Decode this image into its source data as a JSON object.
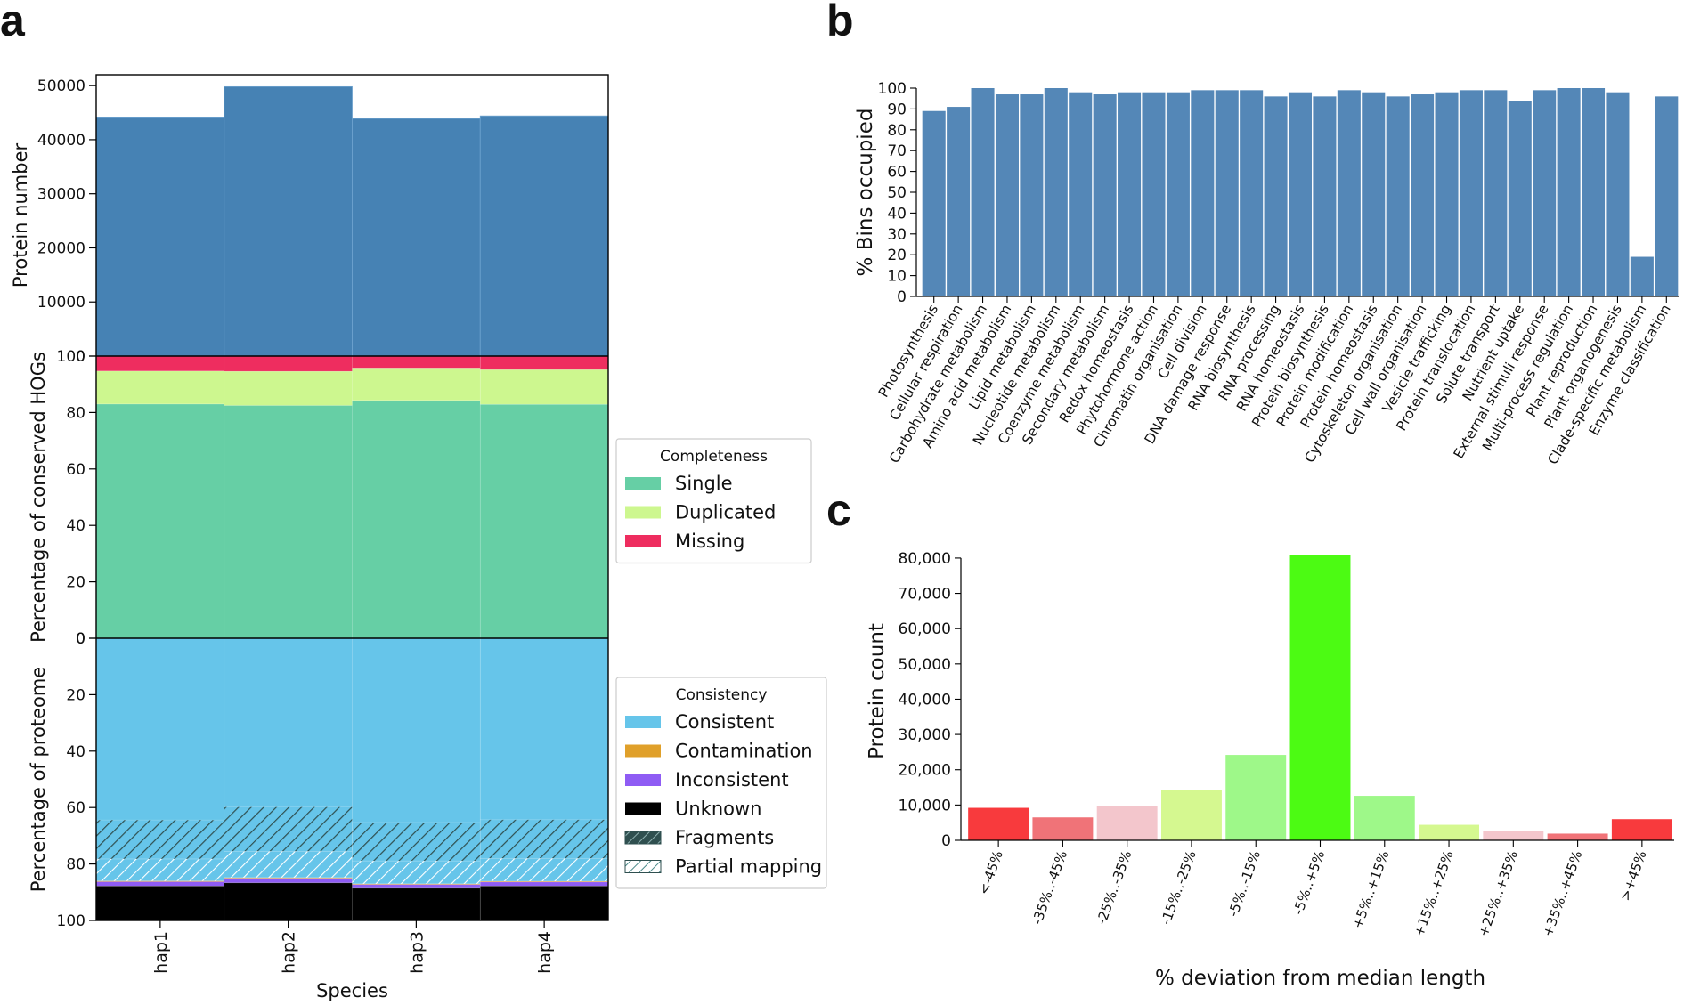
{
  "panel_labels": {
    "a": "a",
    "b": "b",
    "c": "c"
  },
  "chart_data": [
    {
      "id": "a-top",
      "type": "bar",
      "categories": [
        "hap1",
        "hap2",
        "hap3",
        "hap4"
      ],
      "values": [
        44200,
        49800,
        43900,
        44400
      ],
      "ylabel": "Protein number",
      "ylim": [
        0,
        52000
      ],
      "yticks": [
        "0",
        "10000",
        "20000",
        "30000",
        "40000",
        "50000"
      ],
      "color": "#4682b4"
    },
    {
      "id": "a-middle",
      "type": "bar",
      "stacked": true,
      "categories": [
        "hap1",
        "hap2",
        "hap3",
        "hap4"
      ],
      "ylabel": "Percentage of conserved HOGs",
      "ylim": [
        0,
        100
      ],
      "yticks": [
        "0",
        "20",
        "40",
        "60",
        "80",
        "100"
      ],
      "series": [
        {
          "name": "Single",
          "values": [
            83.0,
            82.5,
            84.3,
            82.9
          ],
          "color": "#66cfa5"
        },
        {
          "name": "Duplicated",
          "values": [
            11.7,
            12.1,
            11.5,
            12.3
          ],
          "color": "#cdf78f"
        },
        {
          "name": "Missing",
          "values": [
            5.3,
            5.4,
            4.2,
            4.8
          ],
          "color": "#ee2d5f"
        }
      ],
      "legend": {
        "title": "Completeness",
        "position": "right"
      }
    },
    {
      "id": "a-bottom",
      "type": "bar",
      "stacked": true,
      "categories": [
        "hap1",
        "hap2",
        "hap3",
        "hap4"
      ],
      "ylabel": "Percentage of proteome",
      "xlabel": "Species",
      "ylim": [
        100,
        0
      ],
      "yticks": [
        "100",
        "80",
        "60",
        "40",
        "20",
        "0"
      ],
      "series": [
        {
          "name": "Consistent",
          "values": [
            86.0,
            84.8,
            87.0,
            86.1
          ],
          "color": "#66c5ea"
        },
        {
          "name": "Contamination",
          "values": [
            0.3,
            0.3,
            0.3,
            0.3
          ],
          "color": "#e0a02a"
        },
        {
          "name": "Inconsistent",
          "values": [
            1.5,
            1.6,
            1.3,
            1.4
          ],
          "color": "#8f5cf4"
        },
        {
          "name": "Unknown",
          "values": [
            12.2,
            13.3,
            11.4,
            12.2
          ],
          "color": "#000000"
        }
      ],
      "overlays": [
        {
          "name": "Partial mapping",
          "start": [
            78.2,
            75.5,
            78.9,
            78.0
          ],
          "end": [
            86.0,
            84.8,
            87.0,
            86.1
          ],
          "style": "light-hatch"
        },
        {
          "name": "Fragments",
          "start": [
            64.4,
            59.8,
            65.3,
            64.3
          ],
          "end": [
            78.2,
            75.5,
            78.9,
            78.0
          ],
          "style": "dark-hatch"
        }
      ],
      "legend": {
        "title": "Consistency",
        "position": "right"
      }
    },
    {
      "id": "b",
      "type": "bar",
      "ylabel": "% Bins occupied",
      "ylim": [
        0,
        100
      ],
      "yticks": [
        "0",
        "10",
        "20",
        "30",
        "40",
        "50",
        "60",
        "70",
        "80",
        "90",
        "100"
      ],
      "color": "#5487b7",
      "categories": [
        "Photosynthesis",
        "Cellular respiration",
        "Carbohydrate metabolism",
        "Amino acid metabolism",
        "Lipid metabolism",
        "Nucleotide metabolism",
        "Coenzyme metabolism",
        "Secondary metabolism",
        "Redox homeostasis",
        "Phytohormone action",
        "Chromatin organisation",
        "Cell division",
        "DNA damage response",
        "RNA biosynthesis",
        "RNA processing",
        "RNA homeostasis",
        "Protein biosynthesis",
        "Protein modification",
        "Protein homeostasis",
        "Cytoskeleton organisation",
        "Cell wall organisation",
        "Vesicle trafficking",
        "Protein translocation",
        "Solute transport",
        "Nutrient uptake",
        "External stimuli response",
        "Multi-process regulation",
        "Plant reproduction",
        "Plant organogenesis",
        "Clade-specific metabolism",
        "Enzyme classification"
      ],
      "values": [
        89,
        91,
        100,
        97,
        97,
        100,
        98,
        97,
        98,
        98,
        98,
        99,
        99,
        99,
        96,
        98,
        96,
        99,
        98,
        96,
        97,
        98,
        99,
        99,
        94,
        99,
        100,
        100,
        98,
        19,
        96
      ]
    },
    {
      "id": "c",
      "type": "bar",
      "xlabel": "% deviation from median length",
      "ylabel": "Protein count",
      "ylim": [
        0,
        82000
      ],
      "yticks": [
        "0",
        "10,000",
        "20,000",
        "30,000",
        "40,000",
        "50,000",
        "60,000",
        "70,000",
        "80,000"
      ],
      "categories": [
        "<-45%",
        "-35%..-45%",
        "-25%..-35%",
        "-15%..-25%",
        "-5%..-15%",
        "-5%..+5%",
        "+5%..+15%",
        "+15%..+25%",
        "+25%..+35%",
        "+35%..+45%",
        ">+45%"
      ],
      "values": [
        9200,
        6500,
        9700,
        14300,
        24200,
        80800,
        12600,
        4400,
        2600,
        1900,
        6000
      ],
      "colors": [
        "#f83a3d",
        "#f07378",
        "#f3c6cc",
        "#d5f890",
        "#9ef889",
        "#4cfb13",
        "#9ef889",
        "#d5f890",
        "#f3c6cc",
        "#f07378",
        "#f83a3d"
      ]
    }
  ]
}
